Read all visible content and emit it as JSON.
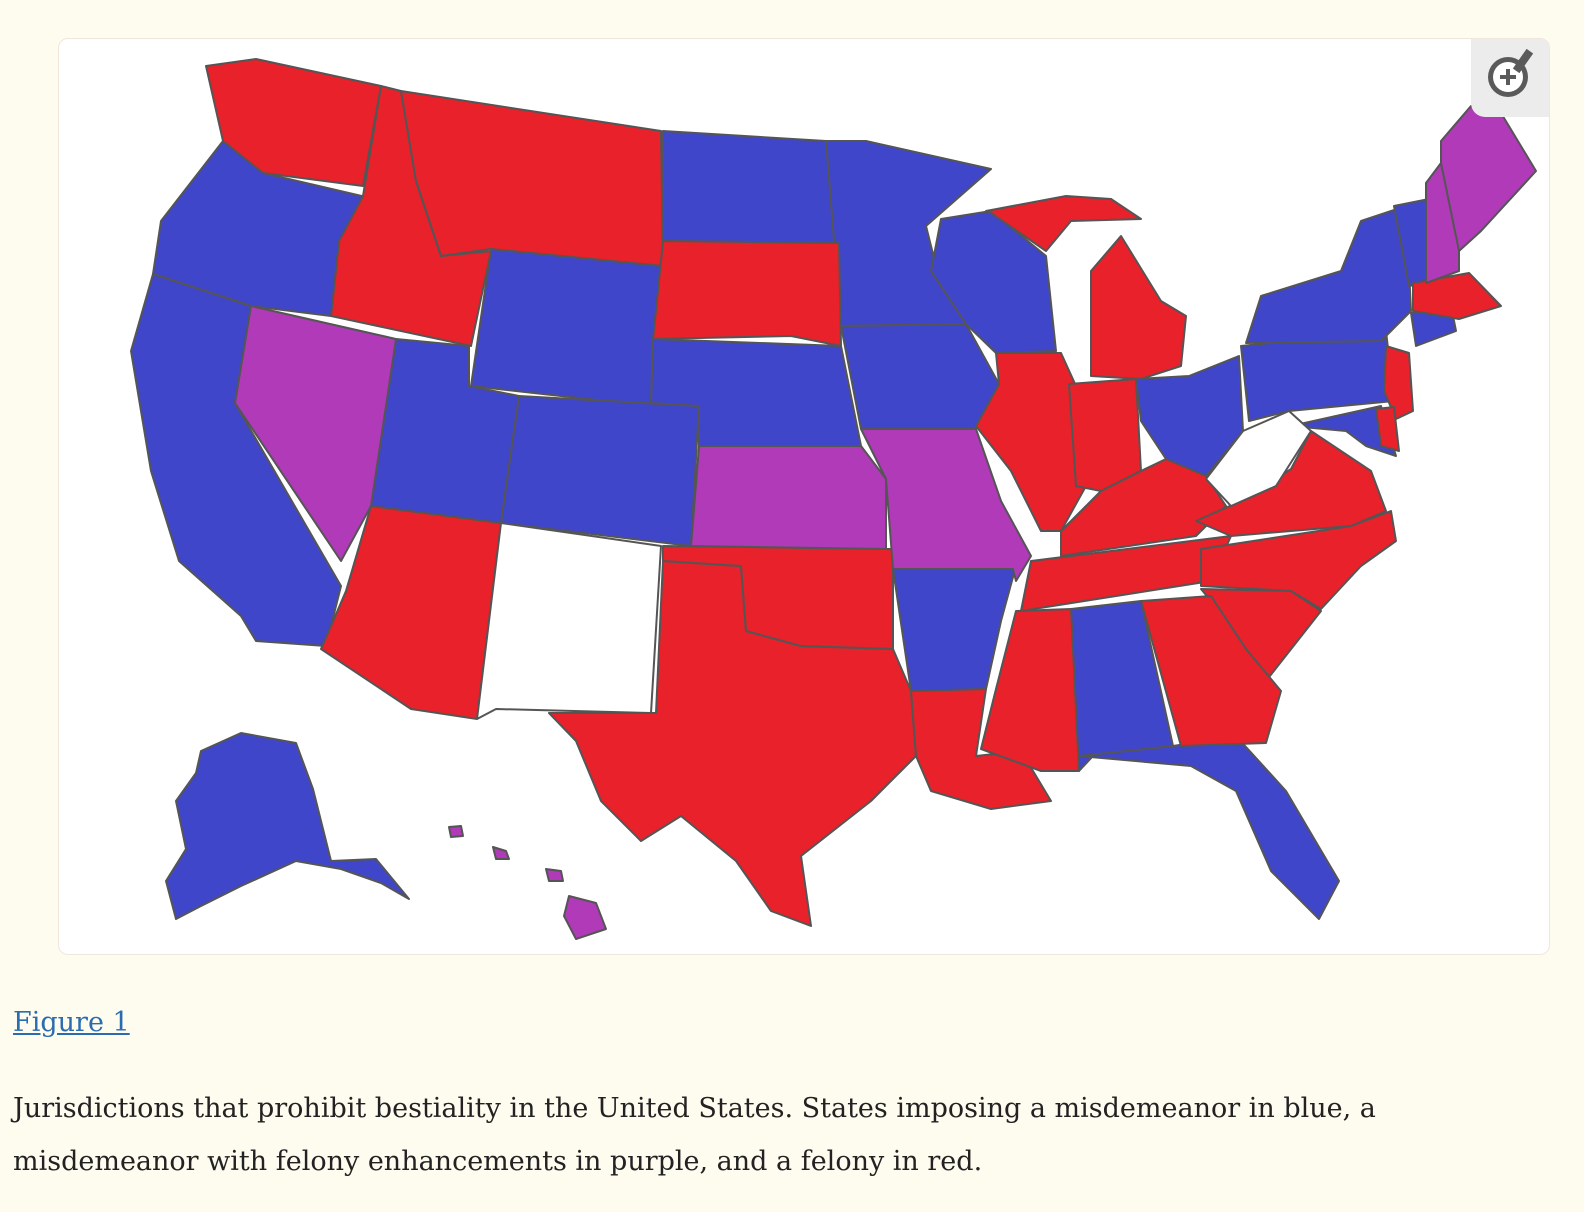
{
  "figure": {
    "link_label": "Figure 1",
    "caption": "Jurisdictions that prohibit bestiality in the United States. States imposing a misdemeanor in blue, a misdemeanor with felony enhancements in purple, and a felony in red."
  },
  "zoom_button": {
    "icon": "zoom-in-icon"
  },
  "colors": {
    "page_background": "#fefbef",
    "misdemeanor": "#3f46c9",
    "misdemeanor_felony_enhancements": "#b03ab8",
    "felony": "#e8212a",
    "no_law": "#ffffff",
    "link": "#2b6cb0"
  }
}
